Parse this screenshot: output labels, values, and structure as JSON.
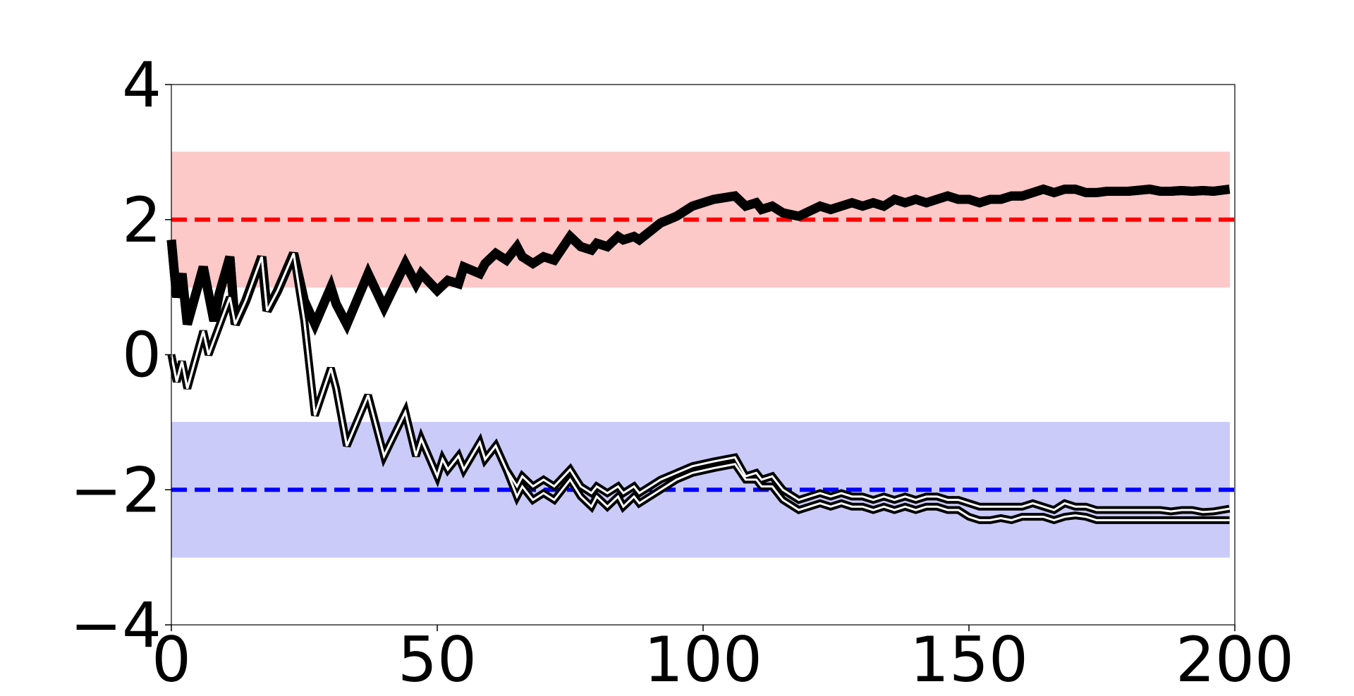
{
  "chart_data": {
    "type": "line",
    "title": "",
    "xlabel": "",
    "ylabel": "",
    "xlim": [
      0,
      200
    ],
    "ylim": [
      -4,
      4
    ],
    "grid": false,
    "legend": false,
    "x_ticks": [
      0,
      50,
      100,
      150,
      200
    ],
    "x_tick_labels": [
      "0",
      "50",
      "100",
      "150",
      "200"
    ],
    "y_ticks": [
      -4,
      -2,
      0,
      2,
      4
    ],
    "y_tick_labels": [
      "−4",
      "−2",
      "0",
      "2",
      "4"
    ],
    "bands": [
      {
        "y0": 1.0,
        "y1": 3.0,
        "x0": 0,
        "x1": 199,
        "color": "#fcc8c8"
      },
      {
        "y0": -3.0,
        "y1": -1.0,
        "x0": 0,
        "x1": 199,
        "color": "#cbcbfa"
      }
    ],
    "reference_lines": [
      {
        "y": 2.0,
        "color": "#ff0000",
        "style": "dashed"
      },
      {
        "y": -2.0,
        "color": "#0000ff",
        "style": "dashed"
      }
    ],
    "series": [
      {
        "color": "#000000",
        "style": "thick-double",
        "x": [
          0,
          1,
          2,
          3,
          6,
          8,
          9,
          11,
          12,
          14,
          17,
          18,
          20,
          23,
          25,
          27,
          30,
          31,
          33,
          37,
          40,
          44,
          46,
          47,
          50,
          52,
          54,
          55,
          58,
          59,
          61,
          63,
          65,
          66,
          68,
          70,
          72,
          75,
          77,
          79,
          80,
          82,
          84,
          85,
          87,
          88,
          92,
          95,
          98,
          102,
          106,
          108,
          110,
          111,
          113,
          115,
          118,
          122,
          124,
          126,
          128,
          130,
          132,
          134,
          136,
          138,
          140,
          142,
          144,
          146,
          148,
          150,
          152,
          154,
          156,
          158,
          160,
          162,
          164,
          166,
          168,
          170,
          172,
          174,
          176,
          180,
          184,
          186,
          188,
          190,
          192,
          194,
          196,
          199
        ],
        "y_upper": [
          1.7,
          0.85,
          1.2,
          0.45,
          1.3,
          0.5,
          0.9,
          1.45,
          0.45,
          0.8,
          1.45,
          0.65,
          0.95,
          1.5,
          0.8,
          0.45,
          1.0,
          0.75,
          0.45,
          1.2,
          0.7,
          1.35,
          1.05,
          1.2,
          0.95,
          1.1,
          1.05,
          1.3,
          1.2,
          1.35,
          1.5,
          1.4,
          1.6,
          1.45,
          1.35,
          1.45,
          1.4,
          1.75,
          1.6,
          1.55,
          1.65,
          1.6,
          1.75,
          1.7,
          1.75,
          1.7,
          1.95,
          2.05,
          2.2,
          2.3,
          2.35,
          2.2,
          2.25,
          2.15,
          2.2,
          2.1,
          2.05,
          2.2,
          2.15,
          2.2,
          2.25,
          2.2,
          2.25,
          2.2,
          2.3,
          2.25,
          2.3,
          2.25,
          2.3,
          2.35,
          2.3,
          2.3,
          2.25,
          2.3,
          2.3,
          2.35,
          2.35,
          2.4,
          2.45,
          2.4,
          2.45,
          2.45,
          2.4,
          2.4,
          2.42,
          2.42,
          2.45,
          2.42,
          2.42,
          2.43,
          2.42,
          2.43,
          2.42,
          2.45
        ],
        "y_lower": [
          1.7,
          0.85,
          1.2,
          0.45,
          1.3,
          0.5,
          0.9,
          1.45,
          0.45,
          0.8,
          1.45,
          0.65,
          0.95,
          1.5,
          0.8,
          0.45,
          1.0,
          0.75,
          0.45,
          1.2,
          0.7,
          1.35,
          1.05,
          1.2,
          0.95,
          1.1,
          1.05,
          1.3,
          1.2,
          1.35,
          1.5,
          1.4,
          1.6,
          1.45,
          1.35,
          1.45,
          1.4,
          1.75,
          1.6,
          1.55,
          1.65,
          1.6,
          1.75,
          1.7,
          1.75,
          1.7,
          1.95,
          2.05,
          2.2,
          2.3,
          2.35,
          2.2,
          2.25,
          2.15,
          2.2,
          2.1,
          2.05,
          2.2,
          2.15,
          2.2,
          2.25,
          2.2,
          2.25,
          2.2,
          2.3,
          2.25,
          2.3,
          2.25,
          2.3,
          2.35,
          2.3,
          2.3,
          2.25,
          2.3,
          2.3,
          2.35,
          2.35,
          2.4,
          2.45,
          2.4,
          2.45,
          2.45,
          2.4,
          2.4,
          2.42,
          2.42,
          2.45,
          2.42,
          2.42,
          2.43,
          2.42,
          2.43,
          2.42,
          2.45
        ]
      },
      {
        "color": "#000000",
        "style": "double",
        "x": [
          0,
          1,
          2,
          3,
          6,
          7,
          11,
          12,
          14,
          17,
          18,
          20,
          23,
          25,
          27,
          30,
          31,
          33,
          37,
          40,
          44,
          46,
          47,
          50,
          51,
          52,
          54,
          55,
          58,
          59,
          61,
          63,
          65,
          66,
          68,
          70,
          72,
          75,
          77,
          79,
          80,
          82,
          84,
          85,
          87,
          88,
          92,
          95,
          98,
          102,
          106,
          108,
          110,
          111,
          113,
          115,
          118,
          122,
          124,
          126,
          128,
          130,
          132,
          134,
          136,
          138,
          140,
          142,
          144,
          146,
          148,
          150,
          152,
          154,
          156,
          158,
          160,
          162,
          164,
          166,
          168,
          170,
          172,
          174,
          176,
          180,
          184,
          186,
          188,
          190,
          192,
          194,
          196,
          199
        ],
        "y_upper": [
          0.0,
          -0.4,
          -0.1,
          -0.5,
          0.35,
          0.0,
          0.85,
          0.45,
          0.8,
          1.45,
          0.65,
          0.95,
          1.5,
          0.5,
          -0.9,
          -0.2,
          -0.5,
          -1.35,
          -0.6,
          -1.5,
          -0.85,
          -1.5,
          -1.25,
          -1.8,
          -1.55,
          -1.7,
          -1.5,
          -1.7,
          -1.3,
          -1.55,
          -1.35,
          -1.7,
          -1.95,
          -1.8,
          -1.95,
          -1.85,
          -1.95,
          -1.7,
          -1.95,
          -2.05,
          -1.95,
          -2.05,
          -1.95,
          -2.05,
          -1.95,
          -2.05,
          -1.85,
          -1.75,
          -1.65,
          -1.58,
          -1.52,
          -1.8,
          -1.75,
          -1.85,
          -1.8,
          -2.0,
          -2.15,
          -2.05,
          -2.1,
          -2.05,
          -2.1,
          -2.1,
          -2.15,
          -2.1,
          -2.15,
          -2.1,
          -2.15,
          -2.1,
          -2.1,
          -2.15,
          -2.15,
          -2.2,
          -2.25,
          -2.25,
          -2.25,
          -2.25,
          -2.25,
          -2.2,
          -2.25,
          -2.3,
          -2.2,
          -2.25,
          -2.25,
          -2.3,
          -2.3,
          -2.3,
          -2.3,
          -2.3,
          -2.32,
          -2.3,
          -2.3,
          -2.33,
          -2.32,
          -2.28
        ],
        "y_lower": [
          0.0,
          -0.4,
          -0.1,
          -0.5,
          0.35,
          0.0,
          0.85,
          0.45,
          0.8,
          1.45,
          0.65,
          0.95,
          1.5,
          0.5,
          -0.9,
          -0.2,
          -0.5,
          -1.35,
          -0.6,
          -1.5,
          -0.85,
          -1.5,
          -1.25,
          -1.8,
          -1.55,
          -1.7,
          -1.5,
          -1.7,
          -1.3,
          -1.55,
          -1.35,
          -1.7,
          -2.1,
          -1.95,
          -2.15,
          -2.05,
          -2.15,
          -1.85,
          -2.1,
          -2.25,
          -2.1,
          -2.25,
          -2.1,
          -2.25,
          -2.1,
          -2.2,
          -2.0,
          -1.85,
          -1.75,
          -1.68,
          -1.62,
          -1.85,
          -1.85,
          -1.95,
          -1.95,
          -2.15,
          -2.3,
          -2.2,
          -2.25,
          -2.2,
          -2.25,
          -2.25,
          -2.3,
          -2.25,
          -2.3,
          -2.25,
          -2.3,
          -2.25,
          -2.25,
          -2.3,
          -2.3,
          -2.4,
          -2.45,
          -2.45,
          -2.42,
          -2.45,
          -2.4,
          -2.4,
          -2.4,
          -2.45,
          -2.4,
          -2.38,
          -2.4,
          -2.45,
          -2.45,
          -2.45,
          -2.45,
          -2.45,
          -2.45,
          -2.45,
          -2.45,
          -2.45,
          -2.45,
          -2.45
        ]
      }
    ]
  }
}
